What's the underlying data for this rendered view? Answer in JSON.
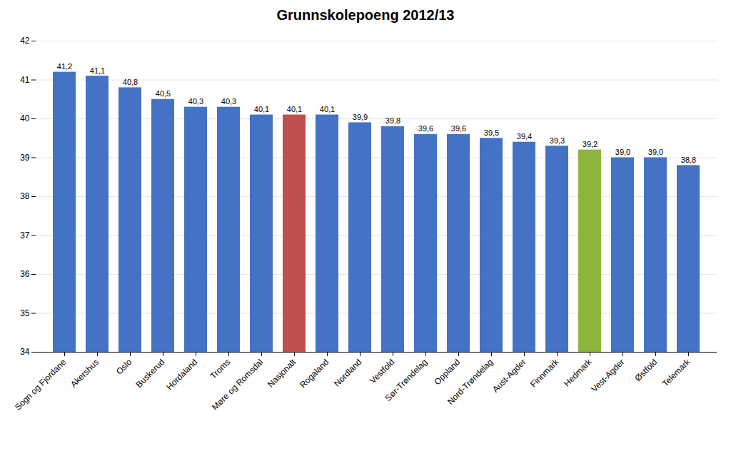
{
  "chart_data": {
    "type": "bar",
    "title": "Grunnskolepoeng 2012/13",
    "categories": [
      "Sogn og Fjordane",
      "Akershus",
      "Oslo",
      "Buskerud",
      "Hordaland",
      "Troms",
      "Møre og Romsdal",
      "Nasjonalt",
      "Rogaland",
      "Nordland",
      "Vestfold",
      "Sør-Trøndelag",
      "Oppland",
      "Nord-Trøndelag",
      "Aust-Agder",
      "Finnmark",
      "Hedmark",
      "Vest-Agder",
      "Østfold",
      "Telemark"
    ],
    "values": [
      41.2,
      41.1,
      40.8,
      40.5,
      40.3,
      40.3,
      40.1,
      40.1,
      40.1,
      39.9,
      39.8,
      39.6,
      39.6,
      39.5,
      39.4,
      39.3,
      39.2,
      39.0,
      39.0,
      38.8
    ],
    "value_labels": [
      "41,2",
      "41,1",
      "40,8",
      "40,5",
      "40,3",
      "40,3",
      "40,1",
      "40,1",
      "40,1",
      "39,9",
      "39,8",
      "39,6",
      "39,6",
      "39,5",
      "39,4",
      "39,3",
      "39,2",
      "39,0",
      "39,0",
      "38,8"
    ],
    "colors": [
      "#4472C4",
      "#4472C4",
      "#4472C4",
      "#4472C4",
      "#4472C4",
      "#4472C4",
      "#4472C4",
      "#C0504D",
      "#4472C4",
      "#4472C4",
      "#4472C4",
      "#4472C4",
      "#4472C4",
      "#4472C4",
      "#4472C4",
      "#4472C4",
      "#8DB53E",
      "#4472C4",
      "#4472C4",
      "#4472C4"
    ],
    "ylim": [
      34,
      42
    ],
    "yticks": [
      34,
      35,
      36,
      37,
      38,
      39,
      40,
      41,
      42
    ],
    "grid": true,
    "data_labels": true
  }
}
